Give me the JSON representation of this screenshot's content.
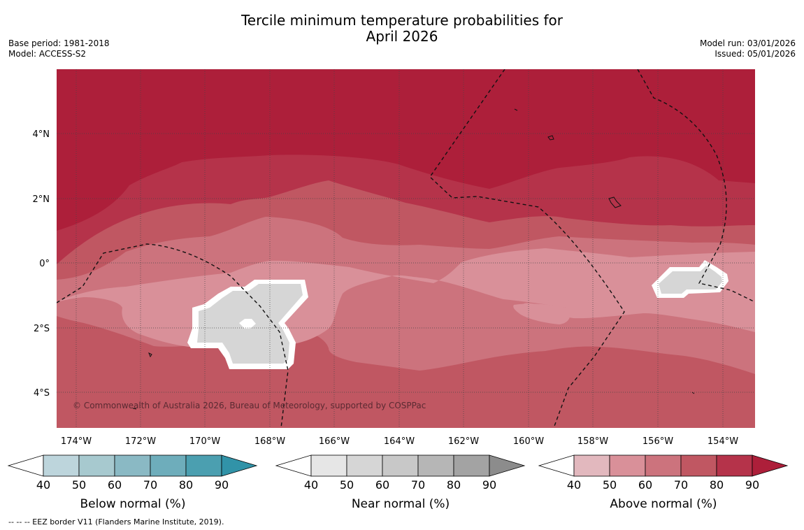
{
  "title": {
    "line1": "Tercile minimum temperature probabilities for",
    "line2": "April 2026"
  },
  "meta_left": {
    "base_period": "Base period: 1981-2018",
    "model": "Model: ACCESS-S2"
  },
  "meta_right": {
    "model_run": "Model run: 03/01/2026",
    "issued": "Issued: 05/01/2026"
  },
  "map": {
    "lat_labels": [
      "4°N",
      "2°N",
      "0°",
      "2°S",
      "4°S"
    ],
    "lon_labels": [
      "174°W",
      "172°W",
      "170°W",
      "168°W",
      "166°W",
      "164°W",
      "162°W",
      "160°W",
      "158°W",
      "156°W",
      "154°W"
    ],
    "attribution": "© Commonwealth of Australia 2026, Bureau of Meteorology, supported by COSPPac"
  },
  "colorbars": [
    {
      "title": "Below normal (%)",
      "ticks": [
        "40",
        "50",
        "60",
        "70",
        "80",
        "90"
      ],
      "colors": [
        "#ffffff",
        "#bdd5dc",
        "#a7c9cf",
        "#8ab9c4",
        "#6eadbb",
        "#4b9fb0",
        "#3193a8"
      ]
    },
    {
      "title": "Near normal (%)",
      "ticks": [
        "40",
        "50",
        "60",
        "70",
        "80",
        "90"
      ],
      "colors": [
        "#ffffff",
        "#e6e6e6",
        "#d6d6d6",
        "#c8c8c8",
        "#b6b6b6",
        "#a3a3a3",
        "#8c8c8c"
      ]
    },
    {
      "title": "Above normal (%)",
      "ticks": [
        "40",
        "50",
        "60",
        "70",
        "80",
        "90"
      ],
      "colors": [
        "#ffffff",
        "#e2b8be",
        "#d99099",
        "#cc737d",
        "#c05762",
        "#b5334a",
        "#ad1f3a"
      ]
    }
  ],
  "footnote": "--  --  -- EEZ border V11 (Flanders Marine Institute, 2019)."
}
